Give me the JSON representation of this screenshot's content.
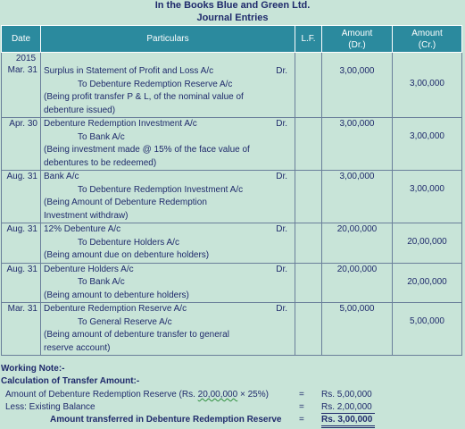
{
  "header": {
    "company": "In the Books Blue and Green Ltd.",
    "title": "Journal Entries"
  },
  "table": {
    "columns": {
      "date": "Date",
      "particulars": "Particulars",
      "lf": "L.F.",
      "debit_1": "Amount",
      "debit_2": "(Dr.)",
      "credit_1": "Amount",
      "credit_2": "(Cr.)"
    },
    "year": "2015",
    "entries": [
      {
        "date": "Mar. 31",
        "debit_account": "Surplus in Statement of Profit and Loss A/c",
        "dr": "Dr.",
        "credit_account": "To Debenture Redemption Reserve A/c",
        "narration_1": "(Being profit transfer P & L, of the nominal value of",
        "narration_2": "debenture issued)",
        "debit": "3,00,000",
        "credit": "3,00,000"
      },
      {
        "date": "Apr. 30",
        "debit_account": "Debenture Redemption Investment A/c",
        "dr": "Dr.",
        "credit_account": "To Bank A/c",
        "narration_1": "(Being investment made @ 15% of the face value of",
        "narration_2": "debentures to be redeemed)",
        "debit": "3,00,000",
        "credit": "3,00,000"
      },
      {
        "date": "Aug. 31",
        "debit_account": "Bank A/c",
        "dr": "Dr.",
        "credit_account": "To Debenture Redemption Investment A/c",
        "narration_1": "(Being Amount of Debenture Redemption",
        "narration_2": "Investment withdraw)",
        "debit": "3,00,000",
        "credit": "3,00,000"
      },
      {
        "date": "Aug. 31",
        "debit_account": "12% Debenture A/c",
        "dr": "Dr.",
        "credit_account": "To Debenture Holders A/c",
        "narration_1": "(Being amount due on debenture holders)",
        "debit": "20,00,000",
        "credit": "20,00,000"
      },
      {
        "date": "Aug. 31",
        "debit_account": "Debenture Holders A/c",
        "dr": "Dr.",
        "credit_account": "To Bank A/c",
        "narration_1": "(Being amount to debenture holders)",
        "debit": "20,00,000",
        "credit": "20,00,000"
      },
      {
        "date": "Mar. 31",
        "debit_account": "Debenture Redemption Reserve A/c",
        "dr": "Dr.",
        "credit_account": "To General Reserve A/c",
        "narration_1": "(Being amount of debenture transfer to general",
        "narration_2": "reserve account)",
        "debit": "5,00,000",
        "credit": "5,00,000"
      }
    ]
  },
  "working_note": {
    "title": "Working Note:-",
    "subtitle": "Calculation of Transfer Amount:-",
    "line1_label_a": "Amount of Debenture Redemption Reserve (Rs. ",
    "line1_label_b": "20,00,000",
    "line1_label_c": " × 25%)",
    "line1_eq": "=",
    "line1_value": "Rs. 5,00,000",
    "line2_label": "Less: Existing Balance",
    "line2_eq": "=",
    "line2_value": "Rs. 2,00,000",
    "line3_label": "Amount transferred in Debenture Redemption Reserve",
    "line3_eq": "=",
    "line3_value": "Rs. 3,00,000"
  }
}
